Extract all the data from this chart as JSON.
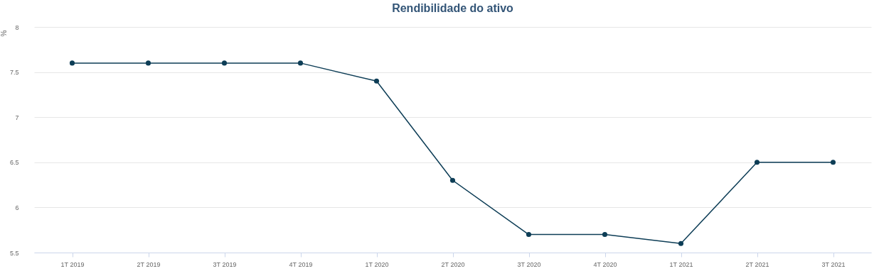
{
  "chart_data": {
    "type": "line",
    "title": "Rendibilidade do ativo",
    "ylabel": "%",
    "categories": [
      "1T 2019",
      "2T 2019",
      "3T 2019",
      "4T 2019",
      "1T 2020",
      "2T 2020",
      "3T 2020",
      "4T 2020",
      "1T 2021",
      "2T 2021",
      "3T 2021"
    ],
    "series": [
      {
        "color": "#0d3d56",
        "values": [
          7.6,
          7.6,
          7.6,
          7.6,
          7.4,
          6.3,
          5.7,
          5.7,
          5.6,
          6.5,
          6.5
        ]
      }
    ],
    "ylim": [
      5.5,
      8
    ],
    "yticks": [
      5.5,
      6,
      6.5,
      7,
      7.5,
      8
    ],
    "grid": "y",
    "marker": "circle",
    "line_style": "solid"
  }
}
